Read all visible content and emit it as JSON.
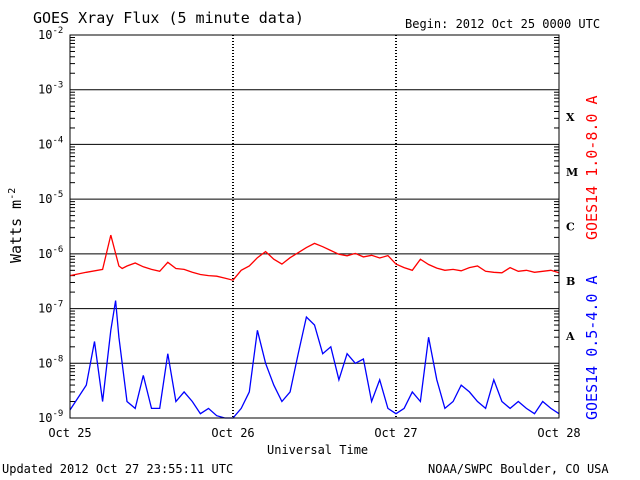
{
  "header": {
    "title": "GOES Xray Flux (5 minute data)",
    "begin": "Begin:  2012 Oct 25 0000 UTC"
  },
  "footer": {
    "updated": "Updated 2012 Oct 27 23:55:11 UTC",
    "credit": "NOAA/SWPC Boulder, CO USA"
  },
  "colors": {
    "long": "#ff0000",
    "short": "#0000ff",
    "grid": "#000000"
  },
  "chart_data": {
    "type": "line",
    "title": "GOES Xray Flux (5 minute data)",
    "xlabel": "Universal Time",
    "ylabel": "Watts m",
    "ylabel_sup": "-2",
    "y_scale": "log",
    "ylim": [
      1e-09,
      0.01
    ],
    "xlim": [
      "2012-10-25",
      "2012-10-28"
    ],
    "x_ticks": [
      "Oct 25",
      "Oct 26",
      "Oct 27",
      "Oct 28"
    ],
    "y_ticks": [
      {
        "base": "10",
        "exp": "-9"
      },
      {
        "base": "10",
        "exp": "-8"
      },
      {
        "base": "10",
        "exp": "-7"
      },
      {
        "base": "10",
        "exp": "-6"
      },
      {
        "base": "10",
        "exp": "-5"
      },
      {
        "base": "10",
        "exp": "-4"
      },
      {
        "base": "10",
        "exp": "-3"
      },
      {
        "base": "10",
        "exp": "-2"
      }
    ],
    "flare_classes": [
      {
        "label": "A",
        "flux": 1e-08
      },
      {
        "label": "B",
        "flux": 1e-07
      },
      {
        "label": "C",
        "flux": 1e-06
      },
      {
        "label": "M",
        "flux": 1e-05
      },
      {
        "label": "X",
        "flux": 0.0001
      }
    ],
    "grid": true,
    "series": [
      {
        "name": "GOES14 1.0-8.0 A",
        "color": "#ff0000",
        "x": [
          0.0,
          0.1,
          0.2,
          0.25,
          0.3,
          0.32,
          0.35,
          0.4,
          0.45,
          0.5,
          0.55,
          0.6,
          0.65,
          0.7,
          0.75,
          0.8,
          0.85,
          0.9,
          0.95,
          1.0,
          1.05,
          1.1,
          1.15,
          1.2,
          1.25,
          1.3,
          1.35,
          1.4,
          1.45,
          1.5,
          1.55,
          1.6,
          1.65,
          1.7,
          1.75,
          1.8,
          1.85,
          1.9,
          1.95,
          2.0,
          2.05,
          2.1,
          2.15,
          2.2,
          2.25,
          2.3,
          2.35,
          2.4,
          2.45,
          2.5,
          2.55,
          2.6,
          2.65,
          2.7,
          2.75,
          2.8,
          2.85,
          2.9,
          2.95,
          3.0
        ],
        "values": [
          4e-07,
          4.6e-07,
          5.2e-07,
          2.2e-06,
          6e-07,
          5.4e-07,
          6e-07,
          6.8e-07,
          5.8e-07,
          5.2e-07,
          4.8e-07,
          7e-07,
          5.4e-07,
          5.2e-07,
          4.6e-07,
          4.2e-07,
          4e-07,
          3.9e-07,
          3.6e-07,
          3.3e-07,
          5e-07,
          6e-07,
          8.5e-07,
          1.1e-06,
          8e-07,
          6.5e-07,
          8.5e-07,
          1.05e-06,
          1.3e-06,
          1.55e-06,
          1.35e-06,
          1.15e-06,
          9.8e-07,
          9.2e-07,
          1.02e-06,
          8.8e-07,
          9.4e-07,
          8.4e-07,
          9.3e-07,
          6.5e-07,
          5.6e-07,
          5e-07,
          8e-07,
          6.4e-07,
          5.5e-07,
          5e-07,
          5.2e-07,
          4.9e-07,
          5.6e-07,
          6e-07,
          4.8e-07,
          4.6e-07,
          4.5e-07,
          5.6e-07,
          4.8e-07,
          5e-07,
          4.6e-07,
          4.8e-07,
          5e-07,
          4.5e-07
        ]
      },
      {
        "name": "GOES14 0.5-4.0 A",
        "color": "#0000ff",
        "x": [
          0.0,
          0.1,
          0.15,
          0.2,
          0.25,
          0.28,
          0.3,
          0.35,
          0.4,
          0.45,
          0.5,
          0.55,
          0.6,
          0.65,
          0.7,
          0.75,
          0.8,
          0.85,
          0.9,
          0.95,
          1.0,
          1.05,
          1.1,
          1.15,
          1.2,
          1.25,
          1.3,
          1.35,
          1.4,
          1.45,
          1.5,
          1.55,
          1.6,
          1.65,
          1.7,
          1.75,
          1.8,
          1.85,
          1.9,
          1.95,
          2.0,
          2.05,
          2.1,
          2.15,
          2.2,
          2.25,
          2.3,
          2.35,
          2.4,
          2.45,
          2.5,
          2.55,
          2.6,
          2.65,
          2.7,
          2.75,
          2.8,
          2.85,
          2.9,
          2.95,
          3.0
        ],
        "values": [
          1.4e-09,
          4e-09,
          2.5e-08,
          2e-09,
          4e-08,
          1.4e-07,
          3e-08,
          2e-09,
          1.5e-09,
          6e-09,
          1.5e-09,
          1.5e-09,
          1.5e-08,
          2e-09,
          3e-09,
          2e-09,
          1.2e-09,
          1.5e-09,
          1.1e-09,
          1e-09,
          1e-09,
          1.5e-09,
          3e-09,
          4e-08,
          1e-08,
          4e-09,
          2e-09,
          3e-09,
          1.5e-08,
          7e-08,
          5e-08,
          1.5e-08,
          2e-08,
          5e-09,
          1.5e-08,
          1e-08,
          1.2e-08,
          2e-09,
          5e-09,
          1.5e-09,
          1.2e-09,
          1.5e-09,
          3e-09,
          2e-09,
          3e-08,
          5e-09,
          1.5e-09,
          2e-09,
          4e-09,
          3e-09,
          2e-09,
          1.5e-09,
          5e-09,
          2e-09,
          1.5e-09,
          2e-09,
          1.5e-09,
          1.2e-09,
          2e-09,
          1.5e-09,
          1.2e-09
        ]
      }
    ]
  }
}
